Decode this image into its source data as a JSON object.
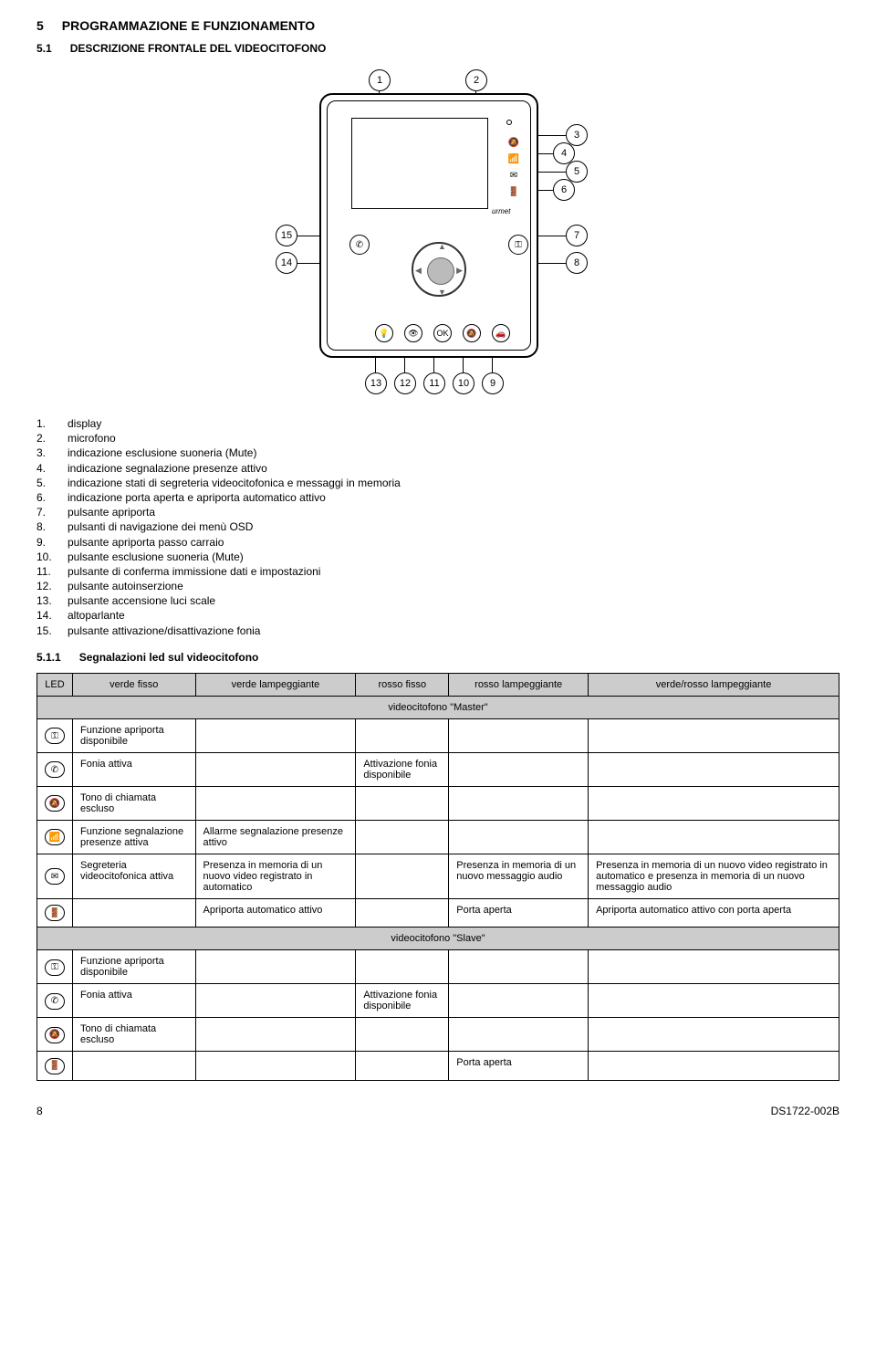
{
  "header": {
    "num": "5",
    "title": "PROGRAMMAZIONE E FUNZIONAMENTO"
  },
  "sub": {
    "num": "5.1",
    "title": "DESCRIZIONE FRONTALE DEL VIDEOCITOFONO"
  },
  "diagram": {
    "brand": "urmet",
    "side_icons": [
      "🔕",
      "📶",
      "✉",
      "🚪"
    ],
    "callouts": [
      "1",
      "2",
      "3",
      "4",
      "5",
      "6",
      "7",
      "8",
      "9",
      "10",
      "11",
      "12",
      "13",
      "14",
      "15"
    ]
  },
  "legend": [
    {
      "n": "1.",
      "t": "display"
    },
    {
      "n": "2.",
      "t": "microfono"
    },
    {
      "n": "3.",
      "t": "indicazione esclusione suoneria (Mute)"
    },
    {
      "n": "4.",
      "t": "indicazione segnalazione presenze attivo"
    },
    {
      "n": "5.",
      "t": "indicazione stati di segreteria videocitofonica e messaggi in memoria"
    },
    {
      "n": "6.",
      "t": "indicazione porta aperta e apriporta automatico attivo"
    },
    {
      "n": "7.",
      "t": "pulsante apriporta"
    },
    {
      "n": "8.",
      "t": "pulsanti di navigazione dei menù OSD"
    },
    {
      "n": "9.",
      "t": "pulsante apriporta passo carraio"
    },
    {
      "n": "10.",
      "t": "pulsante esclusione suoneria (Mute)"
    },
    {
      "n": "11.",
      "t": "pulsante di conferma immissione dati e impostazioni"
    },
    {
      "n": "12.",
      "t": "pulsante autoinserzione"
    },
    {
      "n": "13.",
      "t": "pulsante accensione luci scale"
    },
    {
      "n": "14.",
      "t": "altoparlante"
    },
    {
      "n": "15.",
      "t": "pulsante attivazione/disattivazione fonia"
    }
  ],
  "subsub": {
    "num": "5.1.1",
    "title": "Segnalazioni led sul videocitofono"
  },
  "table": {
    "headers": [
      "LED",
      "verde fisso",
      "verde lampeggiante",
      "rosso fisso",
      "rosso lampeggiante",
      "verde/rosso lampeggiante"
    ],
    "section_master": "videocitofono \"Master\"",
    "section_slave": "videocitofono \"Slave\"",
    "icons": {
      "key": "⚿",
      "phone": "✆",
      "mute": "🔕",
      "alarm": "📶",
      "mail": "✉",
      "door": "🚪"
    },
    "rows_master": [
      {
        "icon": "key",
        "cells": [
          "Funzione apriporta disponibile",
          "",
          "",
          "",
          ""
        ]
      },
      {
        "icon": "phone",
        "cells": [
          "Fonia attiva",
          "",
          "Attivazione fonia disponibile",
          "",
          ""
        ]
      },
      {
        "icon": "mute",
        "cells": [
          "Tono di chiamata escluso",
          "",
          "",
          "",
          ""
        ]
      },
      {
        "icon": "alarm",
        "cells": [
          "Funzione segnalazione presenze attiva",
          "Allarme segnalazione presenze attivo",
          "",
          "",
          ""
        ]
      },
      {
        "icon": "mail",
        "cells": [
          "Segreteria videocitofonica attiva",
          "Presenza in memoria di un nuovo video registrato in automatico",
          "",
          "Presenza in memoria di un nuovo messaggio audio",
          "Presenza in memoria di un nuovo video registrato in automatico e presenza in memoria di un nuovo messaggio audio"
        ]
      },
      {
        "icon": "door",
        "cells": [
          "",
          "Apriporta automatico attivo",
          "",
          "Porta aperta",
          "Apriporta automatico attivo con porta aperta"
        ]
      }
    ],
    "rows_slave": [
      {
        "icon": "key",
        "cells": [
          "Funzione apriporta disponibile",
          "",
          "",
          "",
          ""
        ]
      },
      {
        "icon": "phone",
        "cells": [
          "Fonia attiva",
          "",
          "Attivazione fonia disponibile",
          "",
          ""
        ]
      },
      {
        "icon": "mute",
        "cells": [
          "Tono di chiamata escluso",
          "",
          "",
          "",
          ""
        ]
      },
      {
        "icon": "door",
        "cells": [
          "",
          "",
          "",
          "Porta aperta",
          ""
        ]
      }
    ]
  },
  "footer": {
    "page": "8",
    "doc": "DS1722-002B"
  }
}
